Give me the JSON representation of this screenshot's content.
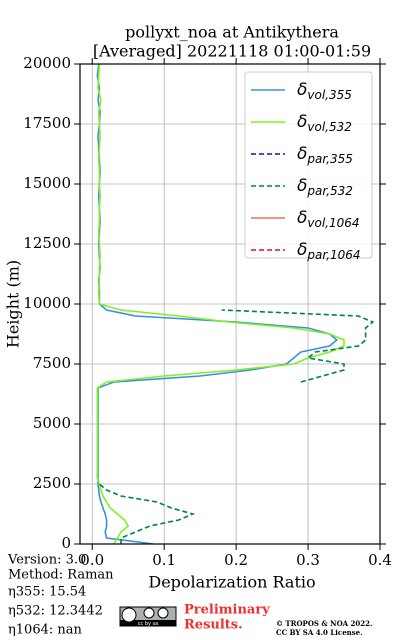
{
  "chart_data": {
    "type": "line",
    "title": "pollyxt_noa at Antikythera",
    "subtitle": "[Averaged] 20221118 01:00-01:59",
    "xlabel": "Depolarization Ratio",
    "ylabel": "Height (m)",
    "xlim": [
      -0.017,
      0.4
    ],
    "ylim": [
      0,
      20000
    ],
    "xticks": [
      {
        "value": 0,
        "label": "0.0"
      },
      0.1,
      0.2,
      0.3,
      0.4
    ],
    "yticks": [
      0,
      2500,
      5000,
      7500,
      10000,
      12500,
      15000,
      17500,
      20000
    ],
    "grid": true,
    "legend": "upper right",
    "heights": [
      0,
      250,
      500,
      750,
      1000,
      1250,
      1500,
      1750,
      2000,
      2250,
      2500,
      2750,
      3000,
      3250,
      3500,
      3750,
      4000,
      4250,
      4500,
      4750,
      5000,
      5250,
      5500,
      5750,
      6000,
      6250,
      6500,
      6750,
      7000,
      7250,
      7500,
      7750,
      8000,
      8250,
      8500,
      8750,
      9000,
      9250,
      9500,
      9750,
      10000,
      10500,
      11000,
      11500,
      12000,
      12500,
      13000,
      13500,
      14000,
      14500,
      15000,
      15500,
      16000,
      16500,
      17000,
      17500,
      18000,
      18500,
      19000,
      19500,
      20000
    ],
    "series": [
      {
        "name": "δvol,355",
        "color": "#3a8fe0",
        "dashed": false,
        "values": [
          0.085,
          0.02,
          0.018,
          0.02,
          0.02,
          0.018,
          0.015,
          0.012,
          0.01,
          0.009,
          0.008,
          0.008,
          0.008,
          0.008,
          0.008,
          0.008,
          0.008,
          0.008,
          0.008,
          0.008,
          0.008,
          0.008,
          0.008,
          0.008,
          0.008,
          0.008,
          0.008,
          0.03,
          0.15,
          0.22,
          0.27,
          0.28,
          0.29,
          0.33,
          0.34,
          0.33,
          0.3,
          0.2,
          0.06,
          0.02,
          0.01,
          0.01,
          0.009,
          0.011,
          0.01,
          0.009,
          0.01,
          0.011,
          0.01,
          0.009,
          0.01,
          0.011,
          0.01,
          0.009,
          0.008,
          0.01,
          0.011,
          0.008,
          0.01,
          0.007,
          0.009
        ]
      },
      {
        "name": "δvol,532",
        "color": "#80f020",
        "dashed": false,
        "values": [
          0.03,
          0.035,
          0.04,
          0.05,
          0.045,
          0.035,
          0.025,
          0.02,
          0.015,
          0.012,
          0.01,
          0.007,
          0.007,
          0.007,
          0.007,
          0.007,
          0.007,
          0.007,
          0.007,
          0.007,
          0.007,
          0.007,
          0.007,
          0.007,
          0.007,
          0.007,
          0.007,
          0.02,
          0.1,
          0.2,
          0.28,
          0.3,
          0.33,
          0.35,
          0.35,
          0.33,
          0.28,
          0.19,
          0.12,
          0.04,
          0.01,
          0.009,
          0.01,
          0.01,
          0.011,
          0.01,
          0.009,
          0.01,
          0.01,
          0.011,
          0.01,
          0.01,
          0.009,
          0.01,
          0.011,
          0.01,
          0.009,
          0.012,
          0.008,
          0.009,
          0.01
        ]
      },
      {
        "name": "δpar,355",
        "color": "#1010c0",
        "dashed": true,
        "values": [
          null,
          null,
          null,
          null,
          null,
          null,
          null,
          null,
          null,
          null,
          null,
          null,
          null,
          null,
          null,
          null,
          null,
          null,
          null,
          null,
          null,
          null,
          null,
          null,
          null,
          null,
          null,
          null,
          null,
          null,
          null,
          null,
          null,
          null,
          null,
          null,
          null,
          null,
          null,
          null,
          null,
          null,
          null,
          null,
          null,
          null,
          null,
          null,
          null,
          null,
          null,
          null,
          null,
          null,
          null,
          null,
          null,
          null,
          null,
          null,
          null
        ]
      },
      {
        "name": "δpar,532",
        "color": "#00804a",
        "dashed": true,
        "values": [
          0.04,
          0.04,
          0.06,
          0.08,
          0.12,
          0.14,
          0.11,
          0.09,
          0.04,
          0.02,
          0.01,
          null,
          null,
          null,
          null,
          null,
          null,
          null,
          null,
          null,
          null,
          null,
          null,
          null,
          null,
          null,
          null,
          0.29,
          0.32,
          0.35,
          0.35,
          0.3,
          0.31,
          0.37,
          0.38,
          0.38,
          0.38,
          0.39,
          0.37,
          0.18,
          null,
          null,
          null,
          null,
          null,
          null,
          null,
          null,
          null,
          null,
          null,
          null,
          null,
          null,
          null,
          null,
          null,
          null,
          null,
          null,
          null
        ]
      },
      {
        "name": "δvol,1064",
        "color": "#f07050",
        "dashed": false,
        "values": [
          null,
          null,
          null,
          null,
          null,
          null,
          null,
          null,
          null,
          null,
          null,
          null,
          null,
          null,
          null,
          null,
          null,
          null,
          null,
          null,
          null,
          null,
          null,
          null,
          null,
          null,
          null,
          null,
          null,
          null,
          null,
          null,
          null,
          null,
          null,
          null,
          null,
          null,
          null,
          null,
          null,
          null,
          null,
          null,
          null,
          null,
          null,
          null,
          null,
          null,
          null,
          null,
          null,
          null,
          null,
          null,
          null,
          null,
          null,
          null,
          null
        ]
      },
      {
        "name": "δpar,1064",
        "color": "#d01818",
        "dashed": true,
        "values": [
          null,
          null,
          null,
          null,
          null,
          null,
          null,
          null,
          null,
          null,
          null,
          null,
          null,
          null,
          null,
          null,
          null,
          null,
          null,
          null,
          null,
          null,
          null,
          null,
          null,
          null,
          null,
          null,
          null,
          null,
          null,
          null,
          null,
          null,
          null,
          null,
          null,
          null,
          null,
          null,
          null,
          null,
          null,
          null,
          null,
          null,
          null,
          null,
          null,
          null,
          null,
          null,
          null,
          null,
          null,
          null,
          null,
          null,
          null,
          null,
          null
        ]
      }
    ],
    "info": [
      "Version: 3.0",
      "Method: Raman",
      "η355:  15.54",
      "η532: 12.3442",
      "η1064:    nan"
    ],
    "logo": "cc by sa",
    "preliminary": [
      "Preliminary",
      "Results."
    ],
    "copyright": [
      "© TROPOS & NOA 2022.",
      "CC BY SA 4.0 License."
    ]
  }
}
